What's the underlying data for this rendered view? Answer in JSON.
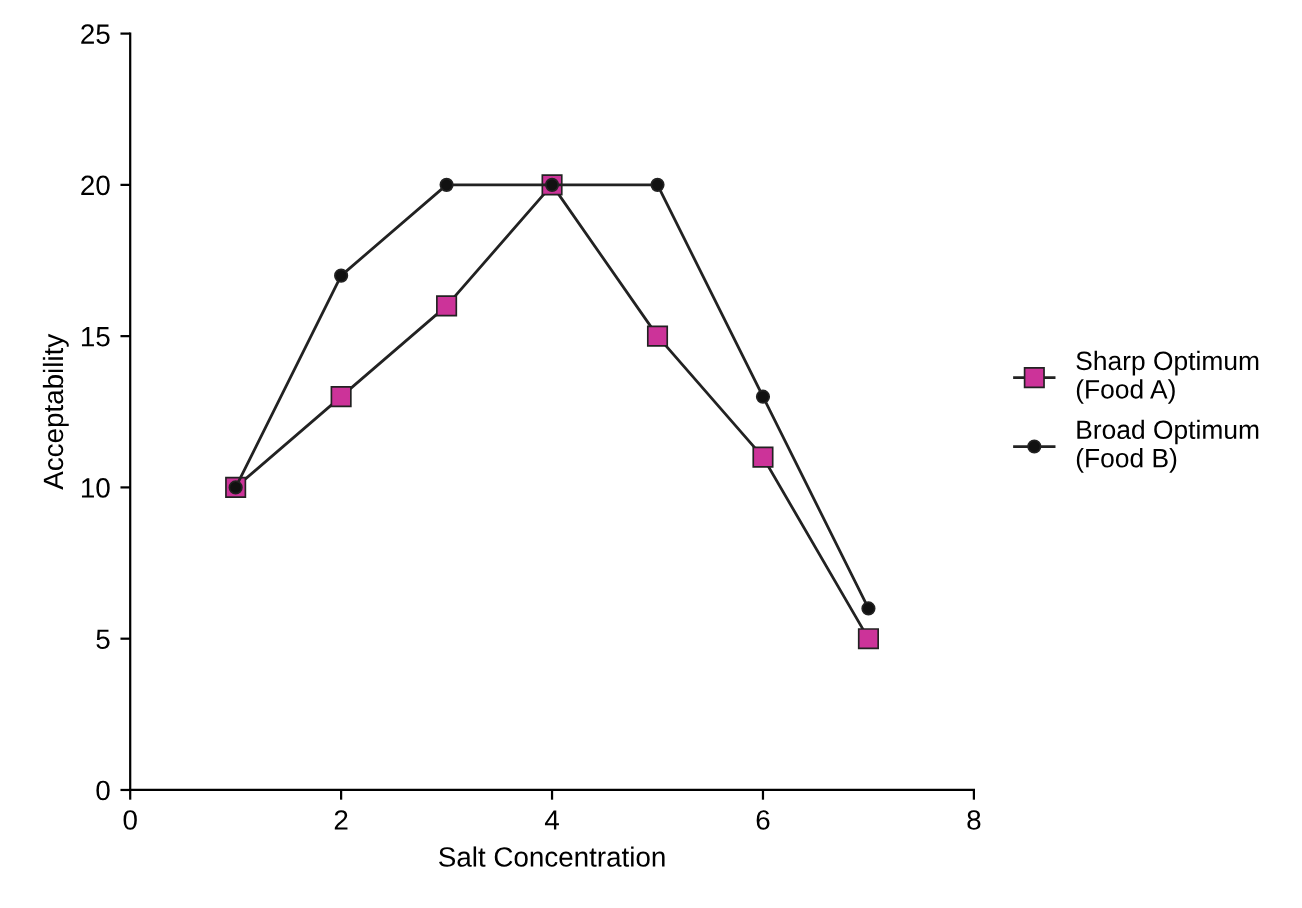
{
  "chart_data": {
    "type": "line",
    "xlabel": "Salt Concentration",
    "ylabel": "Acceptability",
    "x": [
      1,
      2,
      3,
      4,
      5,
      6,
      7
    ],
    "series": [
      {
        "name": "Sharp Optimum\n(Food A)",
        "color": "#cc3399",
        "marker": "square",
        "values": [
          10,
          13,
          16,
          20,
          15,
          11,
          5
        ]
      },
      {
        "name": "Broad Optimum\n(Food B)",
        "color": "#111111",
        "marker": "circle",
        "values": [
          10,
          17,
          20,
          20,
          20,
          13,
          6
        ]
      }
    ],
    "xlim": [
      0,
      8
    ],
    "xticks": [
      0,
      2,
      4,
      6,
      8
    ],
    "ylim": [
      0,
      25
    ],
    "yticks": [
      0,
      5,
      10,
      15,
      20,
      25
    ],
    "grid": false,
    "legend": "right",
    "line_style": "solid"
  }
}
